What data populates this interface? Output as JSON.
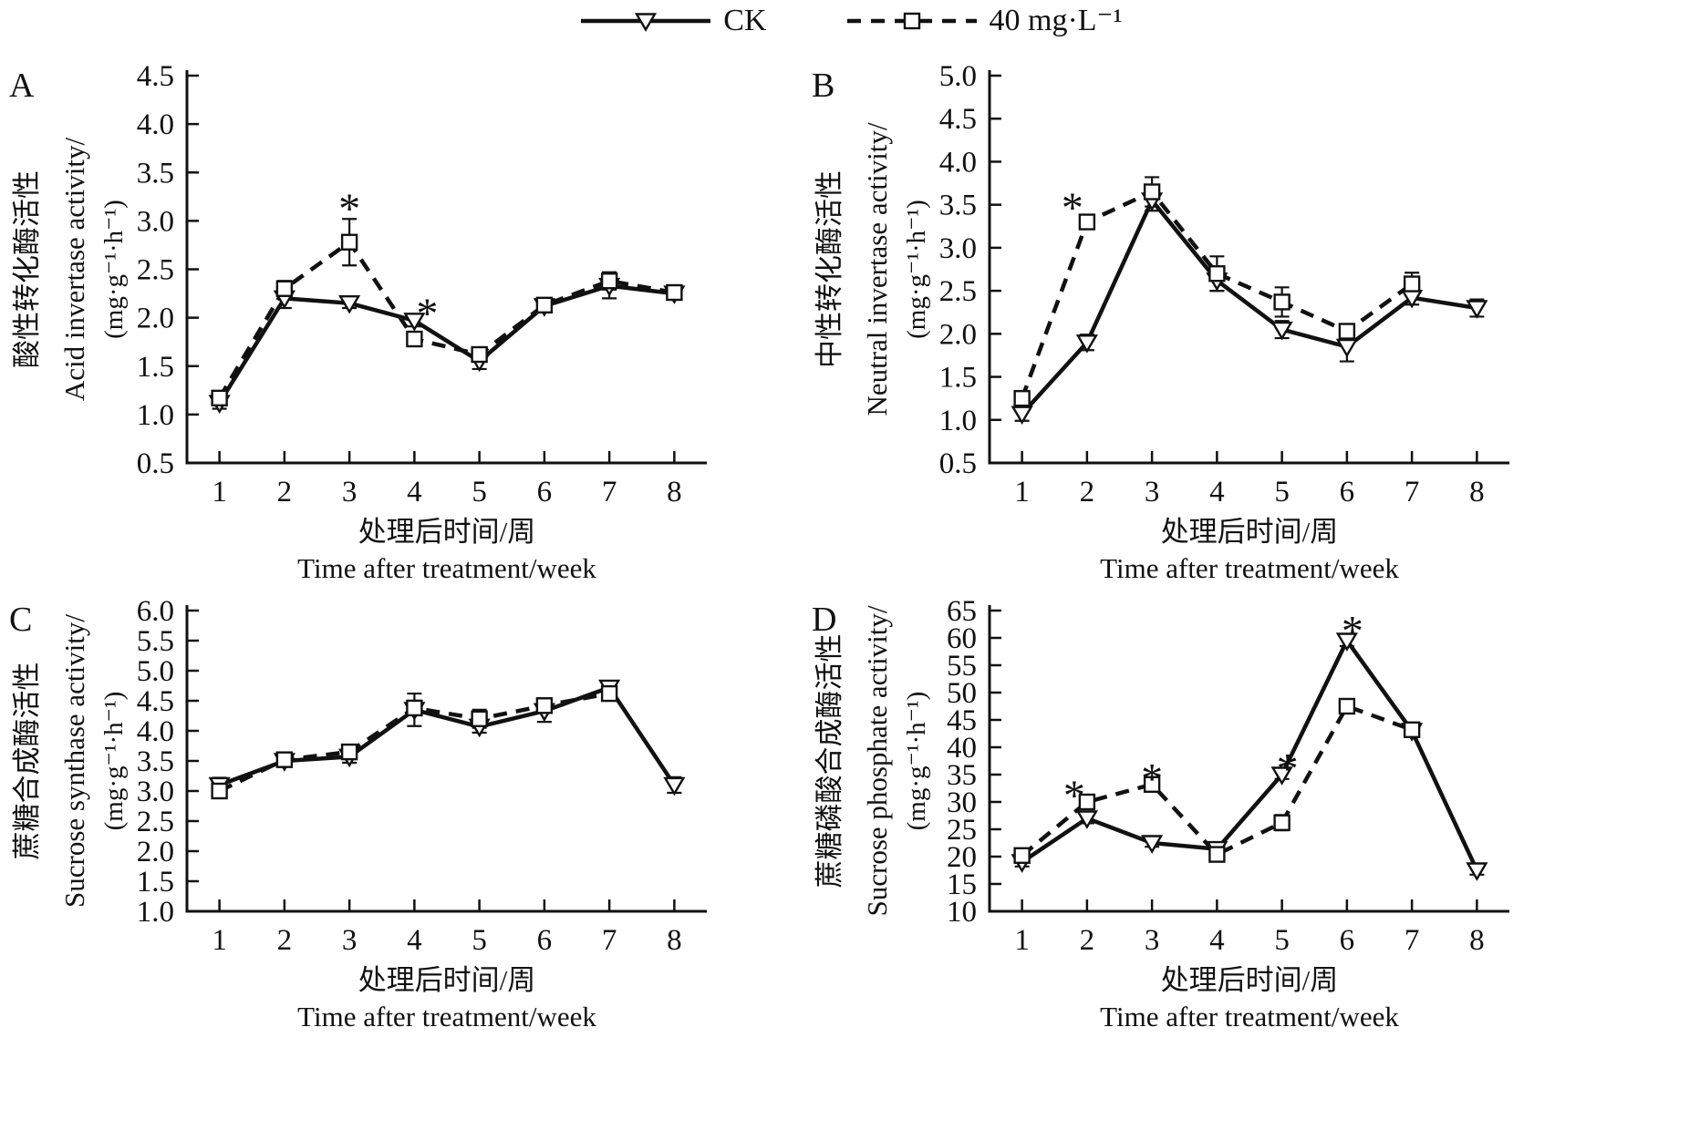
{
  "colors": {
    "ink": "#111111",
    "background": "#ffffff"
  },
  "legend": {
    "entries": [
      {
        "label": "CK",
        "line": "solid",
        "marker": "triangle-down"
      },
      {
        "label": "40 mg·L⁻¹",
        "line": "dashed",
        "marker": "square"
      }
    ]
  },
  "x_axis": {
    "title_zh": "处理后时间/周",
    "title_en": "Time after treatment/week",
    "ticks": [
      1,
      2,
      3,
      4,
      5,
      6,
      7,
      8
    ]
  },
  "chart_data": [
    {
      "panel": "A",
      "type": "line",
      "ylabel_zh": "酸性转化酶活性",
      "ylabel_en": "Acid invertase activity/",
      "ylabel_unit": "(mg·g⁻¹·h⁻¹)",
      "ylim": [
        0.5,
        4.5
      ],
      "ystep": 0.5,
      "ydecimals": 1,
      "x": [
        1,
        2,
        3,
        4,
        5,
        6,
        7,
        8
      ],
      "series": [
        {
          "name": "CK",
          "values": [
            1.12,
            2.2,
            2.15,
            1.97,
            1.55,
            2.12,
            2.33,
            2.25
          ],
          "errors": [
            0.06,
            0.1,
            0.05,
            0.06,
            0.08,
            0.06,
            0.13,
            0.05
          ]
        },
        {
          "name": "40 mg·L⁻¹",
          "values": [
            1.17,
            2.3,
            2.78,
            1.78,
            1.62,
            2.13,
            2.38,
            2.26
          ],
          "errors": [
            0.07,
            0.08,
            0.24,
            0.05,
            0.05,
            0.07,
            0.09,
            0.04
          ]
        }
      ],
      "asterisks": [
        {
          "week": 3,
          "y": 3.2,
          "dx": 0
        },
        {
          "week": 4,
          "y": 2.12,
          "dx": 14
        }
      ]
    },
    {
      "panel": "B",
      "type": "line",
      "ylabel_zh": "中性转化酶活性",
      "ylabel_en": "Neutral invertase activity/",
      "ylabel_unit": "(mg·g⁻¹·h⁻¹)",
      "ylim": [
        0.5,
        5.0
      ],
      "ystep": 0.5,
      "ydecimals": 1,
      "x": [
        1,
        2,
        3,
        4,
        5,
        6,
        7,
        8
      ],
      "series": [
        {
          "name": "CK",
          "values": [
            1.07,
            1.9,
            3.55,
            2.62,
            2.05,
            1.85,
            2.42,
            2.3
          ],
          "errors": [
            0.08,
            0.09,
            0.12,
            0.12,
            0.1,
            0.17,
            0.08,
            0.1
          ]
        },
        {
          "name": "40 mg·L⁻¹",
          "values": [
            1.25,
            3.3,
            3.65,
            2.7,
            2.37,
            2.03,
            2.58,
            null
          ],
          "errors": [
            0.06,
            0.08,
            0.17,
            0.2,
            0.17,
            0.08,
            0.13,
            0
          ]
        }
      ],
      "asterisks": [
        {
          "week": 2,
          "y": 3.55,
          "dx": -16
        }
      ]
    },
    {
      "panel": "C",
      "type": "line",
      "ylabel_zh": "蔗糖合成酶活性",
      "ylabel_en": "Sucrose synthase activity/",
      "ylabel_unit": "(mg·g⁻¹·h⁻¹)",
      "ylim": [
        1.0,
        6.0
      ],
      "ystep": 0.5,
      "ydecimals": 1,
      "x": [
        1,
        2,
        3,
        4,
        5,
        6,
        7,
        8
      ],
      "series": [
        {
          "name": "CK",
          "values": [
            3.1,
            3.5,
            3.57,
            4.35,
            4.07,
            4.33,
            4.72,
            3.1
          ],
          "errors": [
            0.12,
            0.08,
            0.1,
            0.27,
            0.1,
            0.18,
            0.06,
            0.13
          ]
        },
        {
          "name": "40 mg·L⁻¹",
          "values": [
            3.0,
            3.52,
            3.65,
            4.38,
            4.2,
            4.42,
            4.62,
            null
          ],
          "errors": [
            0.1,
            0.1,
            0.1,
            0.12,
            0.15,
            0.12,
            0.1,
            0
          ]
        }
      ],
      "asterisks": []
    },
    {
      "panel": "D",
      "type": "line",
      "ylabel_zh": "蔗糖磷酸合成酶活性",
      "ylabel_en": "Sucrose phosphate activity/",
      "ylabel_unit": "(mg·g⁻¹·h⁻¹)",
      "ylim": [
        10,
        65
      ],
      "ystep": 5,
      "ydecimals": 0,
      "x": [
        1,
        2,
        3,
        4,
        5,
        6,
        7,
        8
      ],
      "series": [
        {
          "name": "CK",
          "values": [
            19.0,
            27.0,
            22.5,
            21.4,
            35.0,
            59.5,
            43.0,
            17.5
          ],
          "errors": [
            0.8,
            0.9,
            0.7,
            0.9,
            0.8,
            1.0,
            0.7,
            0.8
          ]
        },
        {
          "name": "40 mg·L⁻¹",
          "values": [
            20.2,
            30.0,
            33.2,
            20.4,
            26.2,
            47.5,
            43.2,
            null
          ],
          "errors": [
            0.8,
            0.9,
            0.8,
            0.9,
            1.4,
            1.2,
            0.6,
            0
          ]
        }
      ],
      "asterisks": [
        {
          "week": 2,
          "y": 32.5,
          "dx": -14
        },
        {
          "week": 3,
          "y": 35.6,
          "dx": 0
        },
        {
          "week": 5,
          "y": 37.4,
          "dx": 6
        },
        {
          "week": 6,
          "y": 62.6,
          "dx": 6
        }
      ]
    }
  ]
}
